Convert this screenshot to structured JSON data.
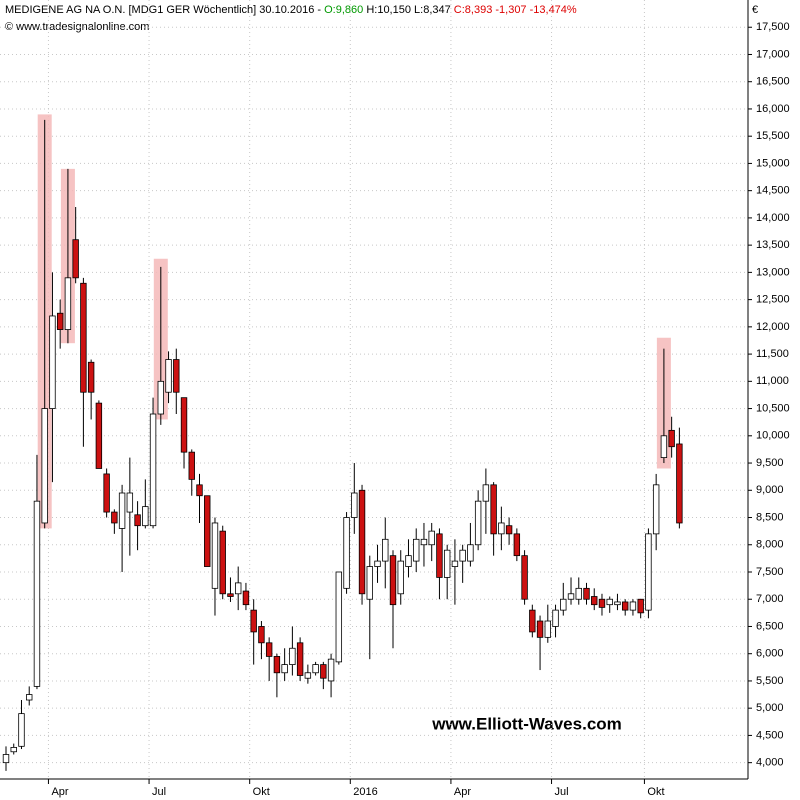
{
  "chart_data": {
    "type": "candlestick",
    "title_parts": [
      {
        "text": "MEDIGENE AG NA O.N. [MDG1 GER  Wöchentlich] 30.10.2016 - ",
        "color": "#000000"
      },
      {
        "text": "O:9,860",
        "color": "#009900"
      },
      {
        "text": " H:10,150 L:8,347 ",
        "color": "#000000"
      },
      {
        "text": "C:8,393 -1,307 -13,474%",
        "color": "#dd0000"
      }
    ],
    "subtitle": "© www.tradesignalonline.com",
    "currency": "€",
    "watermark": "www.Elliott-Waves.com",
    "categories": [
      null,
      null,
      null,
      null,
      null,
      null,
      "Apr",
      null,
      null,
      null,
      null,
      null,
      null,
      null,
      null,
      null,
      null,
      null,
      null,
      "Jul",
      null,
      null,
      null,
      null,
      null,
      null,
      null,
      null,
      null,
      null,
      null,
      null,
      "Okt",
      null,
      null,
      null,
      null,
      null,
      null,
      null,
      null,
      null,
      null,
      null,
      null,
      "2016",
      null,
      null,
      null,
      null,
      null,
      null,
      null,
      null,
      null,
      null,
      null,
      null,
      "Apr",
      null,
      null,
      null,
      null,
      null,
      null,
      null,
      null,
      null,
      null,
      null,
      null,
      "Jul",
      null,
      null,
      null,
      null,
      null,
      null,
      null,
      null,
      null,
      null,
      null,
      "Okt",
      null,
      null,
      null,
      null
    ],
    "open": [
      4000,
      4200,
      4300,
      5150,
      5400,
      8400,
      10500,
      12250,
      11950,
      13600,
      12800,
      11350,
      10600,
      9300,
      8600,
      8300,
      8600,
      8550,
      8350,
      8350,
      10400,
      10800,
      11400,
      10700,
      9700,
      9100,
      8900,
      7200,
      8250,
      7100,
      7100,
      7150,
      6800,
      6500,
      6200,
      5950,
      5650,
      5800,
      6200,
      5550,
      5650,
      5800,
      5500,
      5850,
      7200,
      8500,
      9000,
      7000,
      7600,
      7700,
      7800,
      7100,
      7600,
      7700,
      8000,
      8000,
      8200,
      7400,
      7600,
      7700,
      7700,
      8000,
      8800,
      9100,
      8200,
      8350,
      8200,
      7800,
      6800,
      6600,
      6300,
      6500,
      6800,
      7000,
      7000,
      7200,
      7050,
      7000,
      6900,
      6900,
      6950,
      6800,
      7000,
      6800,
      8200,
      9600,
      10100,
      9850
    ],
    "high": [
      4300,
      4350,
      5150,
      5400,
      9650,
      15800,
      13000,
      12500,
      14900,
      14200,
      12900,
      11400,
      10650,
      9400,
      8650,
      9100,
      9600,
      8800,
      9200,
      10700,
      13100,
      11550,
      11600,
      10700,
      9750,
      9300,
      8900,
      8500,
      8350,
      7400,
      7600,
      7300,
      7000,
      6600,
      6300,
      6000,
      6100,
      6500,
      6300,
      5800,
      5850,
      5850,
      6000,
      7500,
      8600,
      9500,
      9100,
      7800,
      8000,
      8500,
      7900,
      7900,
      8100,
      8300,
      8400,
      8400,
      8300,
      8000,
      8100,
      8000,
      8400,
      9000,
      9400,
      9150,
      8700,
      8500,
      8300,
      7900,
      6900,
      6700,
      6900,
      6900,
      7300,
      7400,
      7400,
      7300,
      7200,
      7100,
      7050,
      7100,
      7000,
      7000,
      7000,
      8300,
      9300,
      11600,
      10350,
      10150
    ],
    "low": [
      3850,
      4150,
      4250,
      5050,
      5350,
      8300,
      9150,
      11600,
      11700,
      12800,
      9800,
      10300,
      9400,
      8500,
      8200,
      7500,
      7800,
      7900,
      8300,
      8300,
      10200,
      10600,
      10400,
      9400,
      8900,
      8400,
      7600,
      6700,
      7000,
      6950,
      6800,
      6800,
      5800,
      5900,
      5500,
      5200,
      5500,
      5600,
      5500,
      5450,
      5600,
      5350,
      5200,
      5800,
      7100,
      8200,
      6900,
      5900,
      7300,
      7200,
      6100,
      6900,
      7400,
      7500,
      7600,
      7700,
      7000,
      7000,
      6900,
      7300,
      7600,
      7900,
      8200,
      7800,
      7900,
      8000,
      7700,
      6900,
      6300,
      5700,
      6200,
      6300,
      6700,
      6900,
      6900,
      6900,
      6800,
      6700,
      6750,
      6800,
      6700,
      6700,
      6650,
      6650,
      7900,
      9500,
      9600,
      8300
    ],
    "close": [
      4150,
      4280,
      4900,
      5250,
      8800,
      10500,
      12200,
      11950,
      12900,
      12900,
      10800,
      10800,
      9400,
      8600,
      8400,
      8950,
      8950,
      8350,
      8700,
      10400,
      11000,
      11400,
      10800,
      9700,
      9200,
      8900,
      7600,
      8400,
      7100,
      7050,
      7300,
      6900,
      6400,
      6200,
      5950,
      5650,
      5800,
      6100,
      5600,
      5650,
      5800,
      5550,
      5900,
      7500,
      8500,
      8950,
      7100,
      7600,
      7700,
      8100,
      6900,
      7700,
      7800,
      8100,
      8100,
      8250,
      7400,
      7900,
      7700,
      7900,
      8000,
      8800,
      9100,
      8200,
      8400,
      8200,
      7800,
      7000,
      6400,
      6300,
      6600,
      6800,
      7000,
      7100,
      7200,
      7000,
      6900,
      6850,
      7000,
      6950,
      6800,
      6950,
      6750,
      8200,
      9100,
      10000,
      9800,
      8400
    ],
    "up_color": "#ffffff",
    "down_color": "#cc1111",
    "highlight_color": "#f4b8b8",
    "highlights": [
      {
        "index": 5,
        "low": 8300,
        "high": 15900
      },
      {
        "index": 8,
        "low": 11700,
        "high": 14900
      },
      {
        "index": 20,
        "low": 10300,
        "high": 13250
      },
      {
        "index": 85,
        "low": 9400,
        "high": 11800
      }
    ],
    "ylim": [
      3700,
      18000
    ],
    "yticks": [
      {
        "value": 4000,
        "label": "4,000"
      },
      {
        "value": 4500,
        "label": "4,500"
      },
      {
        "value": 5000,
        "label": "5,000"
      },
      {
        "value": 5500,
        "label": "5,500"
      },
      {
        "value": 6000,
        "label": "6,000"
      },
      {
        "value": 6500,
        "label": "6,500"
      },
      {
        "value": 7000,
        "label": "7,000"
      },
      {
        "value": 7500,
        "label": "7,500"
      },
      {
        "value": 8000,
        "label": "8,000"
      },
      {
        "value": 8500,
        "label": "8,500"
      },
      {
        "value": 9000,
        "label": "9,000"
      },
      {
        "value": 9500,
        "label": "9,500"
      },
      {
        "value": 10000,
        "label": "10,000"
      },
      {
        "value": 10500,
        "label": "10,500"
      },
      {
        "value": 11000,
        "label": "11,000"
      },
      {
        "value": 11500,
        "label": "11,500"
      },
      {
        "value": 12000,
        "label": "12,000"
      },
      {
        "value": 12500,
        "label": "12,500"
      },
      {
        "value": 13000,
        "label": "13,000"
      },
      {
        "value": 13500,
        "label": "13,500"
      },
      {
        "value": 14000,
        "label": "14,000"
      },
      {
        "value": 14500,
        "label": "14,500"
      },
      {
        "value": 15000,
        "label": "15,000"
      },
      {
        "value": 15500,
        "label": "15,500"
      },
      {
        "value": 16000,
        "label": "16,000"
      },
      {
        "value": 16500,
        "label": "16,500"
      },
      {
        "value": 17000,
        "label": "17,000"
      },
      {
        "value": 17500,
        "label": "17,500"
      }
    ],
    "grid": true
  }
}
